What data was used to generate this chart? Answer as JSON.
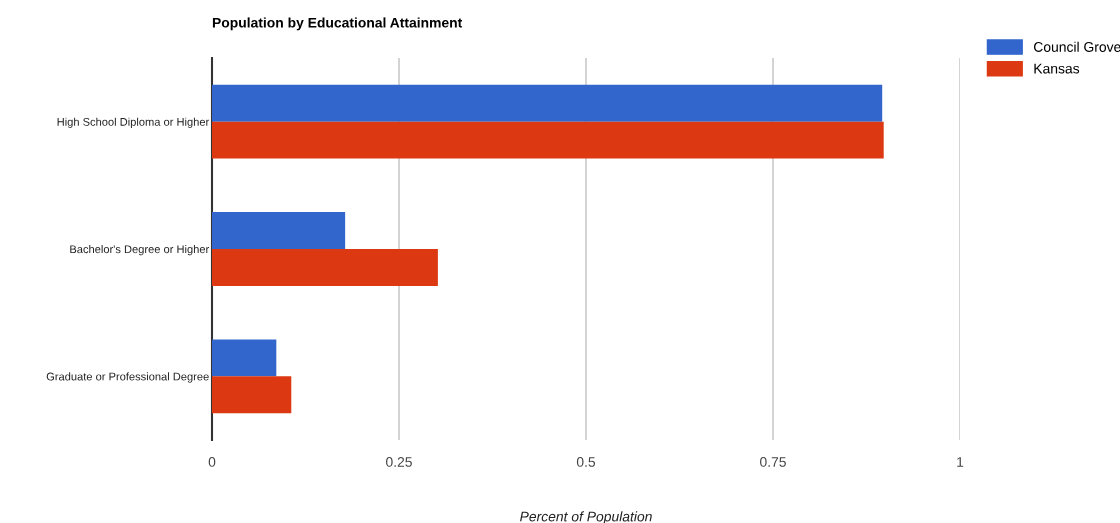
{
  "chart_data": {
    "type": "bar",
    "orientation": "horizontal",
    "title": "Population by Educational Attainment",
    "xlabel": "Percent of Population",
    "categories": [
      "High School Diploma or Higher",
      "Bachelor's Degree or Higher",
      "Graduate or Professional Degree"
    ],
    "series": [
      {
        "name": "Council Grove",
        "color": "#3366cc",
        "values": [
          0.896,
          0.178,
          0.086
        ]
      },
      {
        "name": "Kansas",
        "color": "#dc3912",
        "values": [
          0.898,
          0.302,
          0.106
        ]
      }
    ],
    "xlim": [
      0,
      1
    ],
    "xticks": [
      0,
      0.25,
      0.5,
      0.75,
      1
    ],
    "grid": "x",
    "legend": "top right"
  }
}
